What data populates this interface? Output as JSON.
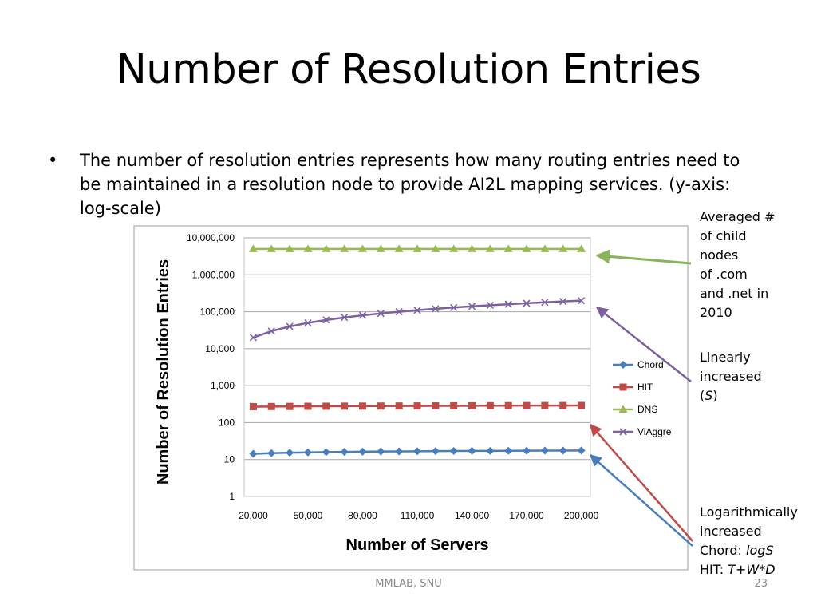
{
  "slide": {
    "title": "Number of Resolution Entries",
    "bullet": "The number of resolution entries represents how many routing entries need to be maintained in a resolution node to provide AI2L mapping services. (y-axis: log-scale)",
    "footer": "MMLAB, SNU",
    "page": "23"
  },
  "annotations": {
    "dns": "Averaged #\nof child\nnodes\nof .com\nand .net in\n2010",
    "viaggre_prefix": "Linearly\nincreased\n(",
    "viaggre_var": "S",
    "viaggre_suffix": ")",
    "log_line1": "Logarithmically",
    "log_line2": "increased",
    "chord_prefix": "Chord: ",
    "chord_formula": "logS",
    "hit_prefix": "HIT: ",
    "hit_formula": "T+W*D"
  },
  "chart_data": {
    "type": "line",
    "title": "",
    "xlabel": "Number of Servers",
    "ylabel": "Number of Resolution Entries",
    "y_scale": "log",
    "ylim": [
      1,
      10000000
    ],
    "y_ticks": [
      1,
      10,
      100,
      1000,
      10000,
      100000,
      1000000,
      10000000
    ],
    "y_tick_labels": [
      "1",
      "10",
      "100",
      "1,000",
      "10,000",
      "100,000",
      "1,000,000",
      "10,000,000"
    ],
    "x": [
      20000,
      30000,
      40000,
      50000,
      60000,
      70000,
      80000,
      90000,
      100000,
      110000,
      120000,
      130000,
      140000,
      150000,
      160000,
      170000,
      180000,
      190000,
      200000
    ],
    "x_tick_labels": [
      "20,000",
      "50,000",
      "80,000",
      "110,000",
      "140,000",
      "170,000",
      "200,000"
    ],
    "x_tick_values": [
      20000,
      50000,
      80000,
      110000,
      140000,
      170000,
      200000
    ],
    "grid": true,
    "legend_position": "right",
    "series": [
      {
        "name": "Chord",
        "color": "#4a7ebb",
        "marker": "diamond",
        "values": [
          14.3,
          14.9,
          15.3,
          15.6,
          15.9,
          16.1,
          16.3,
          16.5,
          16.6,
          16.7,
          16.9,
          17.0,
          17.1,
          17.2,
          17.3,
          17.4,
          17.5,
          17.5,
          17.6
        ]
      },
      {
        "name": "HIT",
        "color": "#be4b48",
        "marker": "square",
        "values": [
          270,
          272,
          274,
          276,
          277,
          278,
          279,
          280,
          281,
          282,
          283,
          284,
          285,
          286,
          287,
          288,
          289,
          289,
          290
        ]
      },
      {
        "name": "DNS",
        "color": "#98b954",
        "marker": "triangle",
        "values": [
          5000000,
          5000000,
          5000000,
          5000000,
          5000000,
          5000000,
          5000000,
          5000000,
          5000000,
          5000000,
          5000000,
          5000000,
          5000000,
          5000000,
          5000000,
          5000000,
          5000000,
          5000000,
          5000000
        ]
      },
      {
        "name": "ViAggre",
        "color": "#7d60a0",
        "marker": "x",
        "values": [
          20000,
          30000,
          40000,
          50000,
          60000,
          70000,
          80000,
          90000,
          100000,
          110000,
          120000,
          130000,
          140000,
          150000,
          160000,
          170000,
          180000,
          190000,
          200000
        ]
      }
    ]
  }
}
